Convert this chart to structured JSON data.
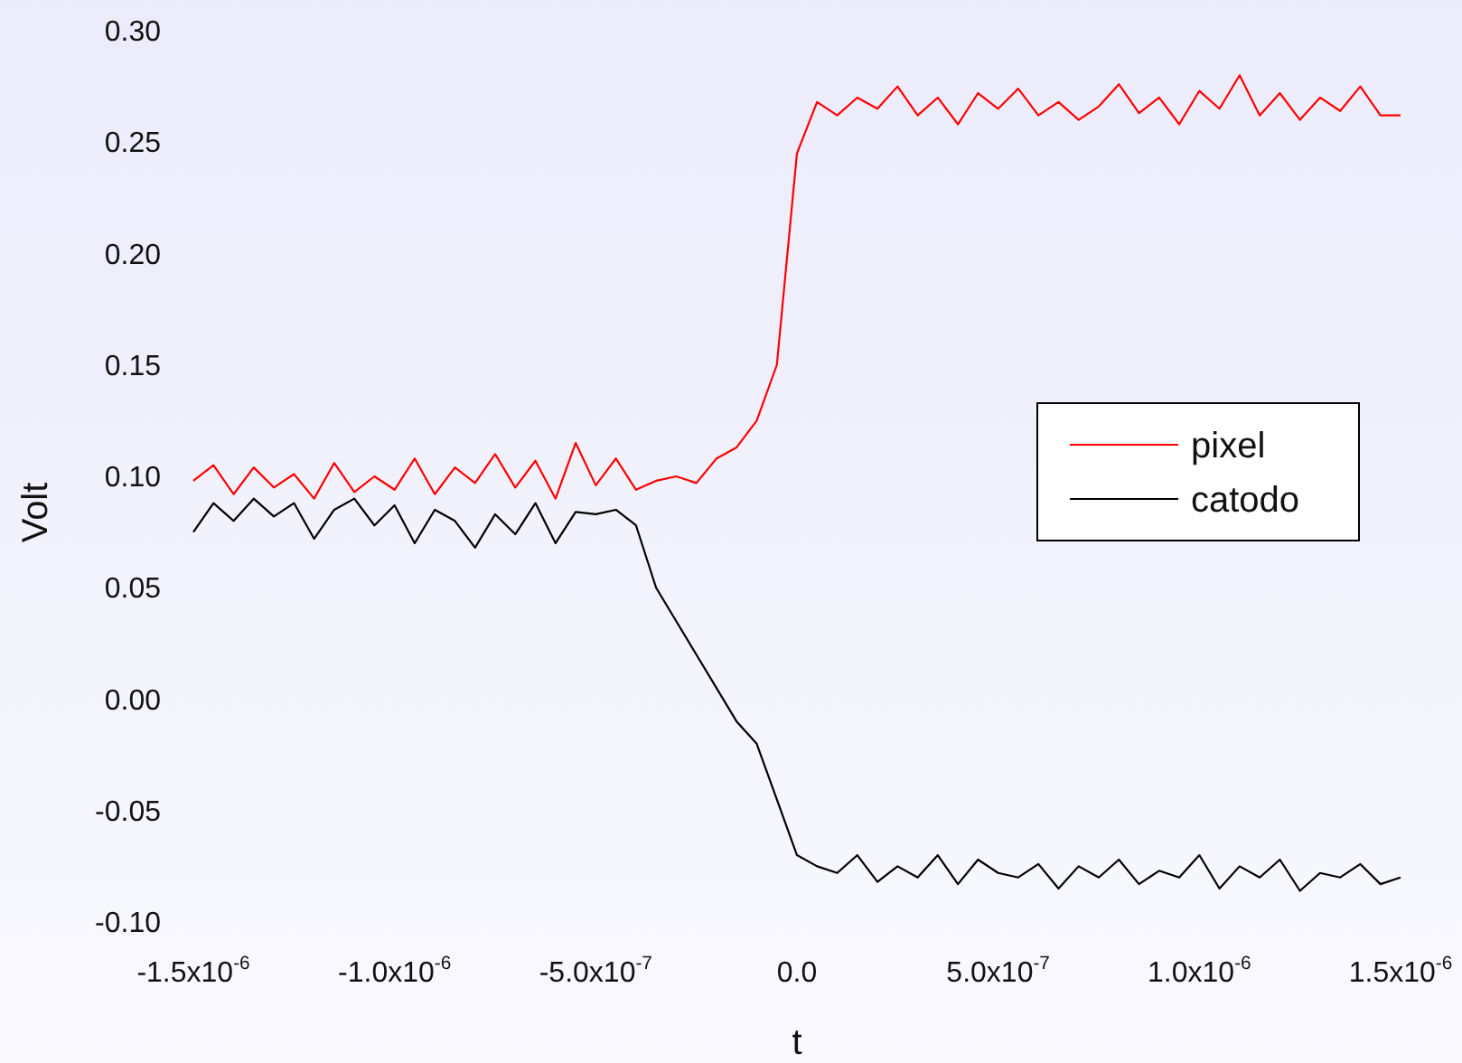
{
  "chart_data": {
    "type": "line",
    "xlabel": "t",
    "ylabel": "Volt",
    "x": [
      -1.5e-06,
      -1.45e-06,
      -1.4e-06,
      -1.35e-06,
      -1.3e-06,
      -1.25e-06,
      -1.2e-06,
      -1.15e-06,
      -1.1e-06,
      -1.05e-06,
      -1e-06,
      -9.5e-07,
      -9e-07,
      -8.5e-07,
      -8e-07,
      -7.5e-07,
      -7e-07,
      -6.5e-07,
      -6e-07,
      -5.5e-07,
      -5e-07,
      -4.5e-07,
      -4e-07,
      -3.5e-07,
      -3e-07,
      -2.5e-07,
      -2e-07,
      -1.5e-07,
      -1e-07,
      -5e-08,
      0,
      5e-08,
      1e-07,
      1.5e-07,
      2e-07,
      2.5e-07,
      3e-07,
      3.5e-07,
      4e-07,
      4.5e-07,
      5e-07,
      5.5e-07,
      6e-07,
      6.5e-07,
      7e-07,
      7.5e-07,
      8e-07,
      8.5e-07,
      9e-07,
      9.5e-07,
      1e-06,
      1.05e-06,
      1.1e-06,
      1.15e-06,
      1.2e-06,
      1.25e-06,
      1.3e-06,
      1.35e-06,
      1.4e-06,
      1.45e-06,
      1.5e-06
    ],
    "series": [
      {
        "name": "pixel",
        "color": "#ff0000",
        "values": [
          0.098,
          0.105,
          0.092,
          0.104,
          0.095,
          0.101,
          0.09,
          0.106,
          0.093,
          0.1,
          0.094,
          0.108,
          0.092,
          0.104,
          0.097,
          0.11,
          0.095,
          0.107,
          0.09,
          0.115,
          0.096,
          0.108,
          0.094,
          0.098,
          0.1,
          0.097,
          0.108,
          0.113,
          0.125,
          0.15,
          0.245,
          0.268,
          0.262,
          0.27,
          0.265,
          0.275,
          0.262,
          0.27,
          0.258,
          0.272,
          0.265,
          0.274,
          0.262,
          0.268,
          0.26,
          0.266,
          0.276,
          0.263,
          0.27,
          0.258,
          0.273,
          0.265,
          0.28,
          0.262,
          0.272,
          0.26,
          0.27,
          0.264,
          0.275,
          0.262,
          0.262
        ]
      },
      {
        "name": "catodo",
        "color": "#000000",
        "values": [
          0.075,
          0.088,
          0.08,
          0.09,
          0.082,
          0.088,
          0.072,
          0.085,
          0.09,
          0.078,
          0.087,
          0.07,
          0.085,
          0.08,
          0.068,
          0.083,
          0.074,
          0.088,
          0.07,
          0.084,
          0.083,
          0.085,
          0.078,
          0.05,
          0.035,
          0.02,
          0.005,
          -0.01,
          -0.02,
          -0.045,
          -0.07,
          -0.075,
          -0.078,
          -0.07,
          -0.082,
          -0.075,
          -0.08,
          -0.07,
          -0.083,
          -0.072,
          -0.078,
          -0.08,
          -0.074,
          -0.085,
          -0.075,
          -0.08,
          -0.072,
          -0.083,
          -0.077,
          -0.08,
          -0.07,
          -0.085,
          -0.075,
          -0.08,
          -0.072,
          -0.086,
          -0.078,
          -0.08,
          -0.074,
          -0.083,
          -0.08
        ]
      }
    ],
    "xlim": [
      -1.5e-06,
      1.5e-06
    ],
    "xticks": [
      {
        "value": -1.5e-06,
        "label": "-1.5x10$^{-6}$"
      },
      {
        "value": -1e-06,
        "label": "-1.0x10$^{-6}$"
      },
      {
        "value": -5e-07,
        "label": "-5.0x10$^{-7}$"
      },
      {
        "value": 0,
        "label": "0.0"
      },
      {
        "value": 5e-07,
        "label": "5.0x10$^{-7}$"
      },
      {
        "value": 1e-06,
        "label": "1.0x10$^{-6}$"
      },
      {
        "value": 1.5e-06,
        "label": "1.5x10$^{-6}$"
      }
    ],
    "ylim": [
      -0.1,
      0.3
    ],
    "yticks": [
      {
        "value": -0.1,
        "label": "-0.10"
      },
      {
        "value": -0.05,
        "label": "-0.05"
      },
      {
        "value": 0,
        "label": "0.00"
      },
      {
        "value": 0.05,
        "label": "0.05"
      },
      {
        "value": 0.1,
        "label": "0.10"
      },
      {
        "value": 0.15,
        "label": "0.15"
      },
      {
        "value": 0.2,
        "label": "0.20"
      },
      {
        "value": 0.25,
        "label": "0.25"
      },
      {
        "value": 0.3,
        "label": "0.30"
      }
    ],
    "legend": "right",
    "grid": false,
    "line_style": "solid",
    "marker": "none"
  }
}
